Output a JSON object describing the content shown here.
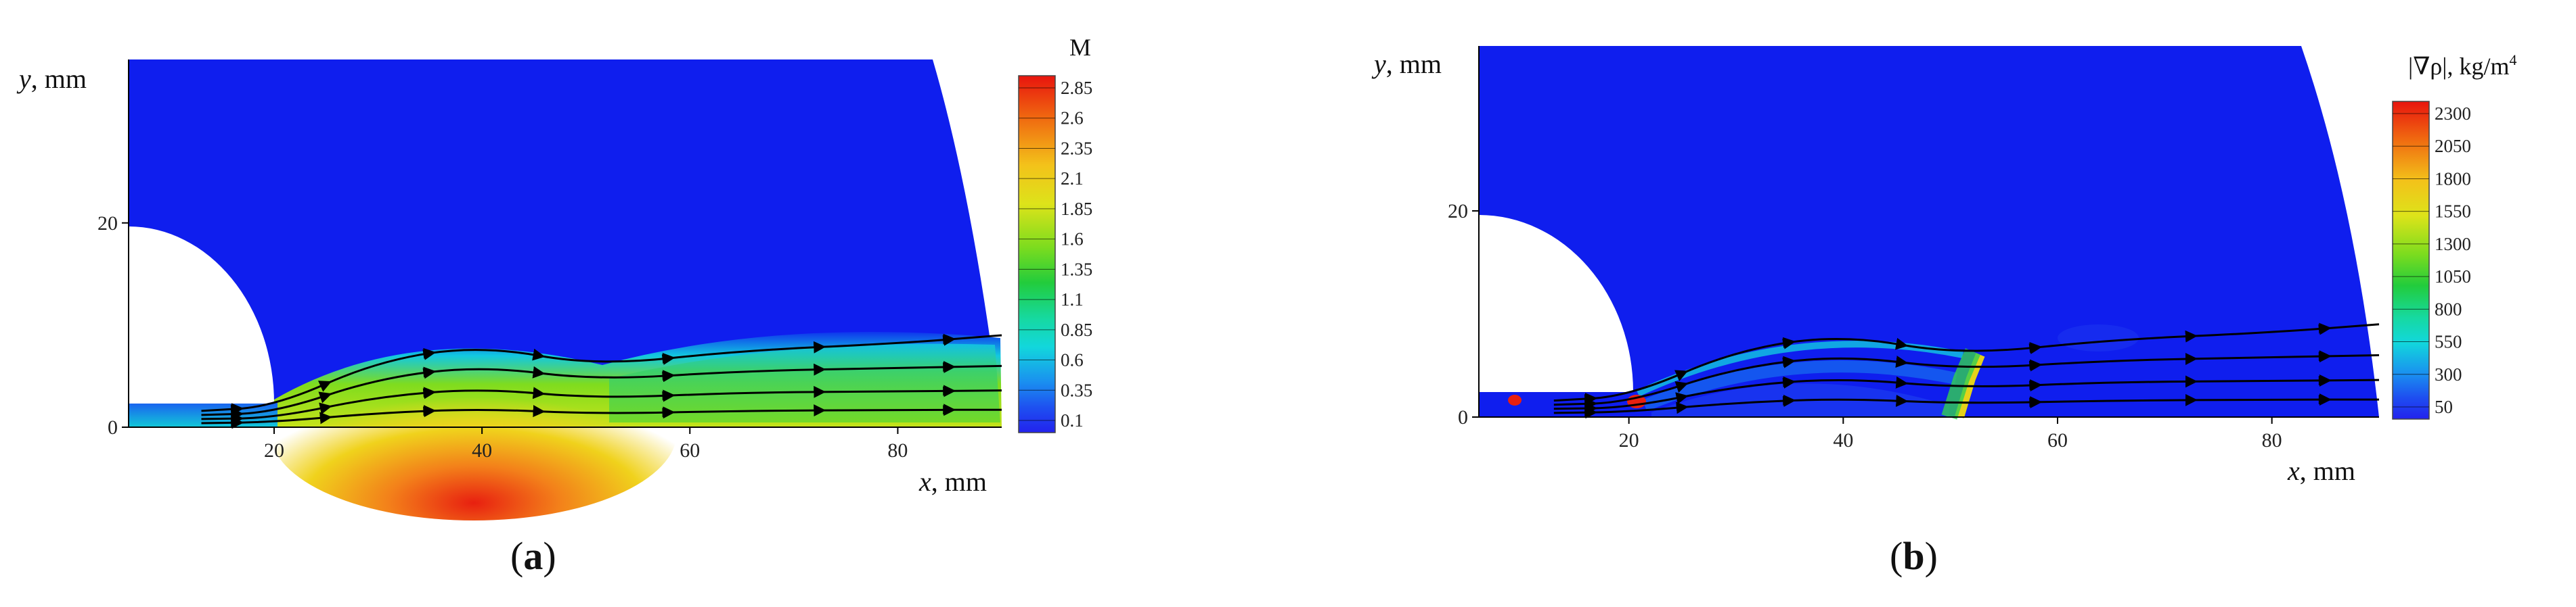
{
  "chart_data": [
    {
      "type": "heatmap",
      "panel_label": "(a)",
      "panel_letter": "a",
      "xlabel_var": "x",
      "xlabel_unit": ", mm",
      "ylabel_var": "y",
      "ylabel_unit": ", mm",
      "xlim": [
        6,
        90
      ],
      "ylim": [
        0,
        36
      ],
      "x_ticks": [
        "20",
        "40",
        "60",
        "80"
      ],
      "y_ticks": [
        "0",
        "20"
      ],
      "colorbar": {
        "title": "M",
        "ticks": [
          "2.85",
          "2.6",
          "2.35",
          "2.1",
          "1.85",
          "1.6",
          "1.35",
          "1.1",
          "0.85",
          "0.6",
          "0.35",
          "0.1"
        ],
        "range": [
          0.1,
          2.85
        ]
      }
    },
    {
      "type": "heatmap",
      "panel_label": "(b)",
      "panel_letter": "b",
      "xlabel_var": "x",
      "xlabel_unit": ", mm",
      "ylabel_var": "y",
      "ylabel_unit": ", mm",
      "xlim": [
        6,
        90
      ],
      "ylim": [
        0,
        36
      ],
      "x_ticks": [
        "20",
        "40",
        "60",
        "80"
      ],
      "y_ticks": [
        "0",
        "20"
      ],
      "colorbar": {
        "title": "|∇ρ|, kg/m",
        "title_sup": "4",
        "ticks": [
          "2300",
          "2050",
          "1800",
          "1550",
          "1300",
          "1050",
          "800",
          "550",
          "300",
          "50"
        ],
        "range": [
          50,
          2300
        ]
      }
    }
  ]
}
